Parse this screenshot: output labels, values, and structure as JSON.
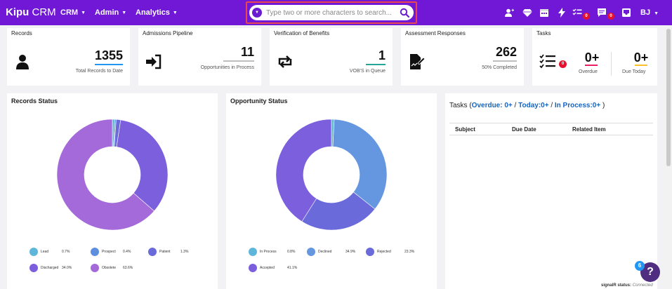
{
  "nav": {
    "logo_bold": "Kipu",
    "logo_rest": " CRM",
    "menus": [
      "CRM",
      "Admin",
      "Analytics"
    ],
    "search_placeholder": "Type two or more characters to search...",
    "tasks_badge": "0",
    "messages_badge": "0",
    "user_initials": "BJ"
  },
  "cards": {
    "records": {
      "title": "Records",
      "value": "1355",
      "sub": "Total Records to Date",
      "accent": "#2196f3"
    },
    "admissions": {
      "title": "Admissions Pipeline",
      "value": "11",
      "sub": "Opportunities in Process",
      "accent": "#bdbdbd"
    },
    "verification": {
      "title": "Verification of Benefits",
      "value": "1",
      "sub": "VOB'S in Queue",
      "accent": "#26a69a"
    },
    "assessment": {
      "title": "Assessment Responses",
      "value": "262",
      "sub": "50% Completed",
      "accent": "#bdbdbd"
    },
    "tasks": {
      "title": "Tasks",
      "badge": "0",
      "overdue_value": "0+",
      "overdue_label": "Overdue",
      "today_value": "0+",
      "today_label": "Due Today",
      "overdue_color": "#e91e63",
      "today_color": "#fbc02d"
    }
  },
  "records_status": {
    "title": "Records Status",
    "legend": [
      {
        "label": "Lead",
        "pct": "0.7%",
        "value": 0.7,
        "color": "#5eb6da"
      },
      {
        "label": "Prospect",
        "pct": "0.4%",
        "value": 0.4,
        "color": "#5e8fde"
      },
      {
        "label": "Patient",
        "pct": "1.3%",
        "value": 1.3,
        "color": "#6a6adb"
      },
      {
        "label": "Discharged",
        "pct": "34.0%",
        "value": 34.0,
        "color": "#7b5fdd"
      },
      {
        "label": "Obsolete",
        "pct": "63.6%",
        "value": 63.6,
        "color": "#a56ad9"
      }
    ]
  },
  "opportunity_status": {
    "title": "Opportunity Status",
    "legend": [
      {
        "label": "In Process",
        "pct": "0.8%",
        "value": 0.8,
        "color": "#5eb6da"
      },
      {
        "label": "Declined",
        "pct": "34.9%",
        "value": 34.9,
        "color": "#6596e0"
      },
      {
        "label": "Rejected",
        "pct": "23.3%",
        "value": 23.3,
        "color": "#6a6adb"
      },
      {
        "label": "Accepted",
        "pct": "41.1%",
        "value": 41.1,
        "color": "#7b5fdd"
      }
    ]
  },
  "tasks_panel": {
    "prefix": "Tasks (",
    "overdue": "Overdue: 0+",
    "sep1": " / ",
    "today": "Today:0+",
    "sep2": " / ",
    "inprocess": "In Process:0+",
    "suffix": " )",
    "columns": [
      "Subject",
      "Due Date",
      "Related Item"
    ]
  },
  "help_badge": "6",
  "help_label": "?",
  "signal_label": "signalR status:",
  "signal_value": "Connected"
}
